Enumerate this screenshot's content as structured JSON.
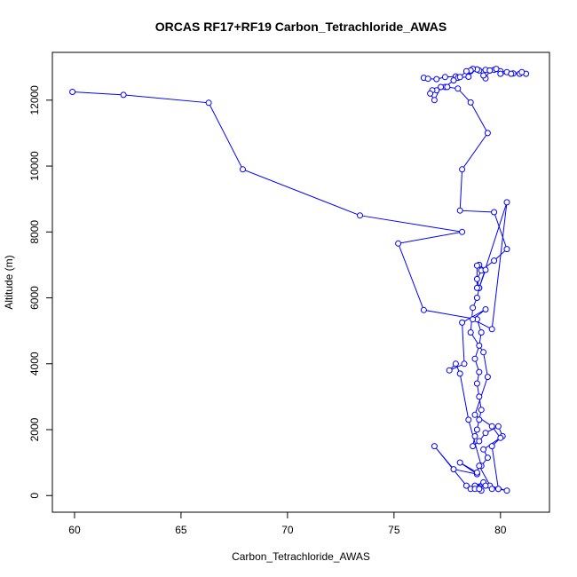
{
  "chart_data": {
    "type": "line",
    "title": "ORCAS RF17+RF19 Carbon_Tetrachloride_AWAS",
    "xlabel": "Carbon_Tetrachloride_AWAS",
    "ylabel": "Altitude (m)",
    "xlim": [
      58.96,
      82.3
    ],
    "ylim": [
      -505,
      13450
    ],
    "xticks": [
      60,
      65,
      70,
      75,
      80
    ],
    "yticks": [
      0,
      2000,
      4000,
      6000,
      8000,
      10000,
      12000
    ],
    "grid": false,
    "colors": {
      "series": "#0000ff"
    },
    "series": [
      {
        "name": "",
        "x": [
          59.9,
          62.3,
          66.3,
          67.9,
          73.4,
          78.2,
          75.2,
          76.4,
          78.9,
          79.1,
          79.0,
          78.8,
          79.0,
          78.9,
          79.0,
          79.1,
          79.0,
          78.9,
          78.8,
          78.7,
          79.0,
          79.3,
          79.9,
          80.1,
          79.2,
          79.4,
          79.1,
          78.5,
          78.1,
          77.9,
          77.6,
          78.3,
          78.2,
          79.3,
          78.7,
          79.6,
          80.3,
          79.0,
          78.9,
          78.7,
          78.6,
          79.2,
          79.4,
          78.8,
          79.6,
          80.0,
          79.6,
          79.9,
          80.3,
          79.5,
          78.8,
          79.2,
          78.6,
          78.4,
          76.9,
          77.8,
          78.9,
          78.1,
          78.9,
          79.0,
          79.6,
          79.9,
          79.3,
          78.8,
          79.1,
          79.0
        ],
        "y": [
          12250,
          12160,
          11920,
          9900,
          8500,
          8000,
          7650,
          5630,
          5350,
          4950,
          4550,
          4150,
          3750,
          3400,
          3000,
          2600,
          2300,
          2000,
          1800,
          1500,
          1650,
          1900,
          2100,
          1800,
          1400,
          1150,
          900,
          2300,
          3700,
          4000,
          3800,
          4000,
          5250,
          5650,
          5350,
          5050,
          8900,
          6300,
          6000,
          5700,
          4950,
          4350,
          3600,
          2450,
          2100,
          1750,
          1500,
          200,
          150,
          300,
          300,
          400,
          200,
          300,
          1500,
          800,
          650,
          1000,
          700,
          900,
          200,
          200,
          300,
          200,
          150,
          200
        ]
      },
      {
        "name": "",
        "x": [
          76.4,
          76.6,
          77.0,
          77.4,
          77.9,
          78.0,
          78.5,
          78.6,
          78.9,
          79.3,
          79.5,
          79.7,
          80.0,
          80.3,
          80.6,
          80.9,
          81.2,
          81.0,
          80.5,
          80.0,
          79.8,
          79.5,
          79.3,
          79.2,
          79.0,
          78.9,
          78.7,
          78.6,
          78.4,
          78.1,
          77.8,
          77.4,
          77.0,
          76.8,
          76.7,
          76.9,
          77.2,
          77.5,
          78.0,
          78.6,
          79.4,
          78.2,
          78.1,
          79.7,
          80.3,
          79.7,
          79.1,
          78.9,
          79.0,
          79.3,
          79.0,
          78.9,
          78.9
        ],
        "y": [
          12680,
          12650,
          12640,
          12700,
          12720,
          12680,
          12710,
          12880,
          12930,
          12920,
          12900,
          12920,
          12880,
          12850,
          12810,
          12800,
          12800,
          12850,
          12800,
          12800,
          12950,
          12900,
          12660,
          12750,
          12900,
          12930,
          12950,
          12900,
          12880,
          12700,
          12600,
          12400,
          12300,
          12300,
          12200,
          12000,
          12400,
          12400,
          12350,
          11930,
          11000,
          9900,
          8650,
          8600,
          7480,
          7130,
          6830,
          6570,
          6300,
          6850,
          7000,
          6980,
          6300
        ]
      }
    ]
  }
}
